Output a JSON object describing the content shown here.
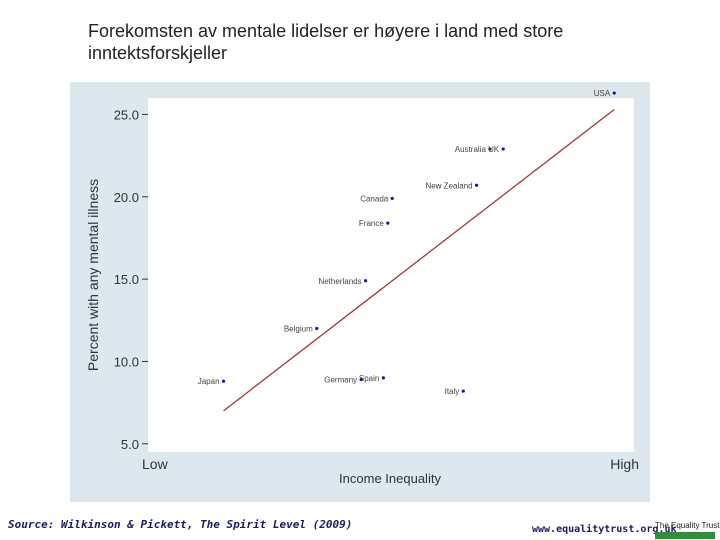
{
  "slide": {
    "title": "Forekomsten av mentale lidelser er høyere i land med store inntektsforskjeller",
    "source": "Source: Wilkinson & Pickett, The Spirit Level (2009)",
    "website": "www.equalitytrust.org.uk",
    "logo_text": "The Equality Trust"
  },
  "colors": {
    "frame_background": "#dde7ee",
    "plot_background": "#ffffff",
    "trend_line": "#9a3a3a",
    "points": "#1a1a80",
    "text": "#333333"
  },
  "chart_data": {
    "type": "scatter",
    "title": "",
    "xlabel": "Income Inequality",
    "ylabel": "Percent with any mental illness",
    "x_tick_labels": [
      "Low",
      "High"
    ],
    "xlim": [
      0,
      10
    ],
    "ylim": [
      4.5,
      26.0
    ],
    "yticks": [
      5.0,
      10.0,
      15.0,
      20.0,
      25.0
    ],
    "ytick_labels": [
      "5.0",
      "10.0",
      "15.0",
      "20.0",
      "25.0"
    ],
    "grid": false,
    "legend": "none",
    "points": [
      {
        "label": "USA",
        "x": 9.6,
        "y": 26.3
      },
      {
        "label": "Australia",
        "x": 6.8,
        "y": 22.9
      },
      {
        "label": "UK",
        "x": 7.1,
        "y": 22.9
      },
      {
        "label": "New Zealand",
        "x": 6.5,
        "y": 20.7
      },
      {
        "label": "Canada",
        "x": 4.6,
        "y": 19.9
      },
      {
        "label": "France",
        "x": 4.5,
        "y": 18.4
      },
      {
        "label": "Netherlands",
        "x": 4.0,
        "y": 14.9
      },
      {
        "label": "Belgium",
        "x": 2.9,
        "y": 12.0
      },
      {
        "label": "Spain",
        "x": 4.4,
        "y": 9.0
      },
      {
        "label": "Germany",
        "x": 3.9,
        "y": 8.9
      },
      {
        "label": "Japan",
        "x": 0.8,
        "y": 8.8
      },
      {
        "label": "Italy",
        "x": 6.2,
        "y": 8.2
      }
    ],
    "trend_line": {
      "x": [
        0.8,
        9.6
      ],
      "y": [
        7.0,
        25.3
      ]
    }
  }
}
